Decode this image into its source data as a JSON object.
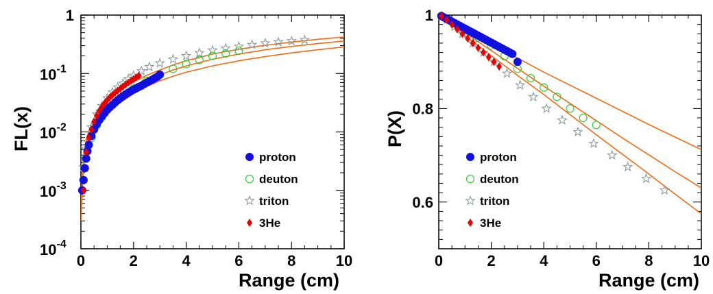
{
  "colors": {
    "proton": "#1010e0",
    "deuton": "#33cc33",
    "triton": "#8a9a9a",
    "he3": "#e60000",
    "fit": "#f06a10"
  },
  "chart_data": [
    {
      "type": "scatter",
      "ylabel": "FL(x)",
      "xlabel": "Range (cm)",
      "xlim": [
        0,
        10
      ],
      "ylim": [
        0.0001,
        1
      ],
      "yscale": "log",
      "xticks": [
        "0",
        "2",
        "4",
        "6",
        "8",
        "10"
      ],
      "yticks": [
        {
          "base": "10",
          "exp": "-4"
        },
        {
          "base": "10",
          "exp": "-3"
        },
        {
          "base": "10",
          "exp": "-2"
        },
        {
          "base": "10",
          "exp": "-1"
        },
        {
          "base": "1",
          "exp": ""
        }
      ],
      "legend_position": "bottom-right",
      "series": [
        {
          "name": "proton",
          "marker": "circle-filled",
          "x": [
            0.05,
            0.1,
            0.15,
            0.2,
            0.25,
            0.3,
            0.4,
            0.5,
            0.6,
            0.7,
            0.8,
            0.9,
            1.0,
            1.1,
            1.2,
            1.3,
            1.4,
            1.5,
            1.6,
            1.7,
            1.8,
            1.9,
            2.0,
            2.1,
            2.2,
            2.3,
            2.4,
            2.5,
            2.6,
            2.7,
            2.8,
            2.9,
            3.0
          ],
          "y": [
            0.001,
            0.0015,
            0.0024,
            0.0035,
            0.0047,
            0.006,
            0.0085,
            0.011,
            0.0135,
            0.016,
            0.0185,
            0.021,
            0.024,
            0.0265,
            0.029,
            0.032,
            0.035,
            0.038,
            0.041,
            0.044,
            0.047,
            0.05,
            0.053,
            0.056,
            0.059,
            0.062,
            0.066,
            0.07,
            0.074,
            0.078,
            0.083,
            0.088,
            0.096
          ]
        },
        {
          "name": "deuton",
          "marker": "circle-open",
          "x": [
            0.1,
            0.2,
            0.4,
            0.6,
            0.8,
            1.0,
            1.5,
            2.0,
            2.5,
            3.0,
            3.5,
            4.0,
            4.5,
            5.0,
            5.5,
            6.0
          ],
          "y": [
            0.0015,
            0.0035,
            0.008,
            0.013,
            0.018,
            0.024,
            0.038,
            0.055,
            0.075,
            0.095,
            0.12,
            0.145,
            0.17,
            0.2,
            0.22,
            0.245
          ]
        },
        {
          "name": "triton",
          "marker": "star-open",
          "x": [
            0.1,
            0.2,
            0.4,
            0.6,
            0.8,
            1.0,
            1.2,
            1.4,
            1.6,
            1.8,
            2.0,
            2.3,
            2.6,
            3.0,
            3.5,
            4.0,
            4.5,
            5.0,
            5.5,
            6.0,
            6.5,
            7.0,
            7.5,
            8.0,
            8.5
          ],
          "y": [
            0.0025,
            0.005,
            0.012,
            0.02,
            0.028,
            0.038,
            0.048,
            0.058,
            0.068,
            0.08,
            0.092,
            0.11,
            0.13,
            0.15,
            0.175,
            0.2,
            0.225,
            0.25,
            0.27,
            0.29,
            0.31,
            0.33,
            0.345,
            0.36,
            0.375
          ]
        },
        {
          "name": "3He",
          "marker": "diamond-filled",
          "x": [
            0.1,
            0.2,
            0.3,
            0.4,
            0.5,
            0.6,
            0.7,
            0.8,
            0.9,
            1.0,
            1.1,
            1.2,
            1.3,
            1.4,
            1.5,
            1.6,
            1.7,
            1.8,
            1.9,
            2.0,
            2.1,
            2.2
          ],
          "y": [
            0.001,
            0.0045,
            0.008,
            0.011,
            0.015,
            0.019,
            0.023,
            0.027,
            0.031,
            0.035,
            0.039,
            0.043,
            0.047,
            0.051,
            0.055,
            0.06,
            0.065,
            0.07,
            0.075,
            0.08,
            0.086,
            0.092
          ]
        }
      ],
      "fit_curves": [
        {
          "points": [
            [
              0,
              0.0003
            ],
            [
              0.1,
              0.0025
            ],
            [
              0.2,
              0.0045
            ],
            [
              0.4,
              0.0085
            ],
            [
              0.6,
              0.0125
            ],
            [
              0.8,
              0.0165
            ],
            [
              1.0,
              0.021
            ],
            [
              1.5,
              0.032
            ],
            [
              2.0,
              0.045
            ],
            [
              2.5,
              0.06
            ],
            [
              3.0,
              0.075
            ],
            [
              3.5,
              0.09
            ],
            [
              4.0,
              0.105
            ],
            [
              5.0,
              0.135
            ],
            [
              6.0,
              0.165
            ],
            [
              7.0,
              0.195
            ],
            [
              8.0,
              0.225
            ],
            [
              9.0,
              0.255
            ],
            [
              10.0,
              0.285
            ]
          ]
        },
        {
          "points": [
            [
              0,
              0.0004
            ],
            [
              0.1,
              0.0035
            ],
            [
              0.2,
              0.0065
            ],
            [
              0.4,
              0.0115
            ],
            [
              0.6,
              0.017
            ],
            [
              0.8,
              0.0225
            ],
            [
              1.0,
              0.028
            ],
            [
              1.5,
              0.042
            ],
            [
              2.0,
              0.058
            ],
            [
              2.5,
              0.075
            ],
            [
              3.0,
              0.095
            ],
            [
              3.5,
              0.115
            ],
            [
              4.0,
              0.135
            ],
            [
              5.0,
              0.175
            ],
            [
              6.0,
              0.215
            ],
            [
              7.0,
              0.255
            ],
            [
              8.0,
              0.29
            ],
            [
              9.0,
              0.325
            ],
            [
              10.0,
              0.36
            ]
          ]
        },
        {
          "points": [
            [
              0,
              0.0005
            ],
            [
              0.1,
              0.004
            ],
            [
              0.2,
              0.0075
            ],
            [
              0.4,
              0.014
            ],
            [
              0.6,
              0.021
            ],
            [
              0.8,
              0.028
            ],
            [
              1.0,
              0.035
            ],
            [
              1.5,
              0.053
            ],
            [
              2.0,
              0.072
            ],
            [
              2.5,
              0.093
            ],
            [
              3.0,
              0.115
            ],
            [
              3.5,
              0.14
            ],
            [
              4.0,
              0.165
            ],
            [
              5.0,
              0.215
            ],
            [
              6.0,
              0.26
            ],
            [
              7.0,
              0.305
            ],
            [
              8.0,
              0.345
            ],
            [
              9.0,
              0.385
            ],
            [
              10.0,
              0.42
            ]
          ]
        }
      ]
    },
    {
      "type": "scatter",
      "ylabel": "P(X)",
      "xlabel": "Range (cm)",
      "xlim": [
        0,
        10
      ],
      "ylim": [
        0.5,
        1.0
      ],
      "yscale": "linear",
      "xticks": [
        "0",
        "2",
        "4",
        "6",
        "8",
        "10"
      ],
      "yticks": [
        {
          "value": 0.6,
          "label": "0.6"
        },
        {
          "value": 0.8,
          "label": "0.8"
        },
        {
          "value": 1.0,
          "label": "1"
        }
      ],
      "legend_position": "bottom-left",
      "series": [
        {
          "name": "proton",
          "marker": "circle-filled",
          "x": [
            0.1,
            0.2,
            0.3,
            0.4,
            0.5,
            0.6,
            0.7,
            0.8,
            0.9,
            1.0,
            1.1,
            1.2,
            1.3,
            1.4,
            1.5,
            1.6,
            1.7,
            1.8,
            1.9,
            2.0,
            2.1,
            2.2,
            2.3,
            2.4,
            2.5,
            2.6,
            2.7,
            2.8,
            3.0
          ],
          "y": [
            0.998,
            0.995,
            0.992,
            0.989,
            0.986,
            0.983,
            0.98,
            0.977,
            0.974,
            0.971,
            0.968,
            0.965,
            0.962,
            0.959,
            0.956,
            0.953,
            0.95,
            0.947,
            0.944,
            0.941,
            0.938,
            0.935,
            0.932,
            0.929,
            0.926,
            0.923,
            0.92,
            0.917,
            0.9
          ]
        },
        {
          "name": "deuton",
          "marker": "circle-open",
          "x": [
            0.1,
            0.5,
            1.0,
            1.5,
            2.0,
            2.5,
            3.0,
            3.5,
            4.0,
            4.5,
            5.0,
            5.5,
            6.0
          ],
          "y": [
            0.998,
            0.985,
            0.97,
            0.952,
            0.935,
            0.912,
            0.885,
            0.865,
            0.845,
            0.825,
            0.8,
            0.78,
            0.765
          ]
        },
        {
          "name": "triton",
          "marker": "star-open",
          "x": [
            0.1,
            0.3,
            0.6,
            0.9,
            1.3,
            1.7,
            2.1,
            2.6,
            3.1,
            3.6,
            4.1,
            4.7,
            5.3,
            5.9,
            6.6,
            7.2,
            7.9,
            8.6
          ],
          "y": [
            0.998,
            0.99,
            0.975,
            0.96,
            0.94,
            0.92,
            0.9,
            0.875,
            0.85,
            0.825,
            0.8,
            0.775,
            0.75,
            0.725,
            0.7,
            0.675,
            0.65,
            0.625
          ]
        },
        {
          "name": "3He",
          "marker": "diamond-filled",
          "x": [
            0.1,
            0.3,
            0.5,
            0.7,
            0.9,
            1.1,
            1.3,
            1.5,
            1.7,
            1.9,
            2.1,
            2.3
          ],
          "y": [
            0.998,
            0.99,
            0.98,
            0.97,
            0.96,
            0.95,
            0.94,
            0.93,
            0.92,
            0.91,
            0.9,
            0.89
          ]
        }
      ],
      "fit_curves": [
        {
          "points": [
            [
              0,
              1.0
            ],
            [
              1,
              0.968
            ],
            [
              2,
              0.938
            ],
            [
              3,
              0.908
            ],
            [
              4,
              0.878
            ],
            [
              5,
              0.85
            ],
            [
              6,
              0.822
            ],
            [
              7,
              0.794
            ],
            [
              8,
              0.766
            ],
            [
              9,
              0.739
            ],
            [
              10,
              0.712
            ]
          ]
        },
        {
          "points": [
            [
              0,
              1.0
            ],
            [
              1,
              0.962
            ],
            [
              2,
              0.924
            ],
            [
              3,
              0.886
            ],
            [
              4,
              0.848
            ],
            [
              5,
              0.811
            ],
            [
              6,
              0.774
            ],
            [
              7,
              0.737
            ],
            [
              8,
              0.701
            ],
            [
              9,
              0.665
            ],
            [
              10,
              0.63
            ]
          ]
        },
        {
          "points": [
            [
              0,
              1.0
            ],
            [
              1,
              0.956
            ],
            [
              2,
              0.913
            ],
            [
              3,
              0.871
            ],
            [
              4,
              0.83
            ],
            [
              5,
              0.787
            ],
            [
              6,
              0.744
            ],
            [
              7,
              0.702
            ],
            [
              8,
              0.66
            ],
            [
              9,
              0.617
            ],
            [
              10,
              0.575
            ]
          ]
        }
      ]
    }
  ]
}
